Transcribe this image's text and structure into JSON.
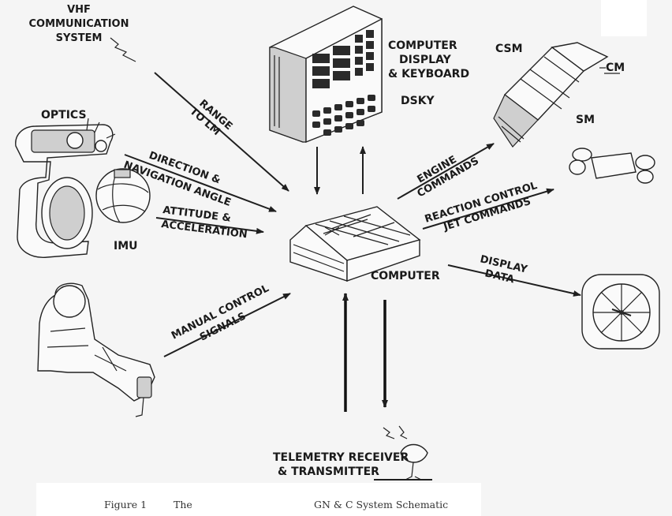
{
  "figure": {
    "caption_number": "Figure 1",
    "caption_article": "The",
    "caption_title": "GN & C System Schematic"
  },
  "components": {
    "vhf_line1": "VHF",
    "vhf_line2": "COMMUNICATION",
    "vhf_line3": "SYSTEM",
    "optics": "OPTICS",
    "imu": "IMU",
    "dsky_line1": "COMPUTER",
    "dsky_line2": "DISPLAY",
    "dsky_line3": "& KEYBOARD",
    "dsky_abbrev": "DSKY",
    "csm": "CSM",
    "cm": "CM",
    "sm": "SM",
    "computer": "COMPUTER",
    "telemetry_line1": "TELEMETRY RECEIVER",
    "telemetry_line2": "& TRANSMITTER"
  },
  "signals": {
    "range_line1": "RANGE",
    "range_line2": "TO LM",
    "direction_line1": "DIRECTION &",
    "direction_line2": "NAVIGATION ANGLE",
    "attitude_line1": "ATTITUDE &",
    "attitude_line2": "ACCELERATION",
    "manual_line1": "MANUAL CONTROL",
    "manual_line2": "SIGNALS",
    "engine_line1": "ENGINE",
    "engine_line2": "COMMANDS",
    "rcs_line1": "REACTION CONTROL",
    "rcs_line2": "JET COMMANDS",
    "display_line1": "DISPLAY",
    "display_line2": "DATA"
  }
}
